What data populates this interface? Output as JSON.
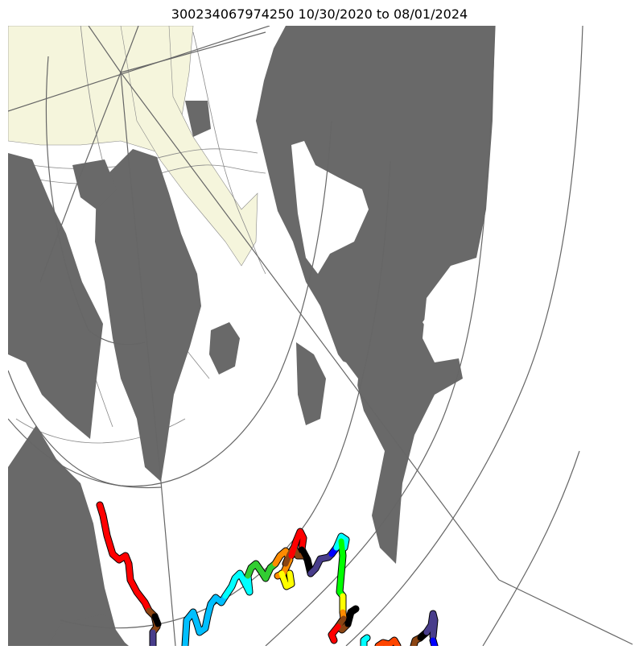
{
  "title": "300234067974250  10/30/2020 to 08/01/2024",
  "colors": {
    "land": "#696969",
    "ice_shelf": "#f5f5dc",
    "grid": "#666666",
    "contour": "#888888",
    "ocean": "#ffffff"
  },
  "track_colors": [
    "#ff0000",
    "#8b4513",
    "#000000",
    "#483d8b",
    "#00bfff",
    "#00ffff",
    "#32cd32",
    "#ff8c00",
    "#ffff00",
    "#0000ff",
    "#00ff00",
    "#ff4500"
  ]
}
